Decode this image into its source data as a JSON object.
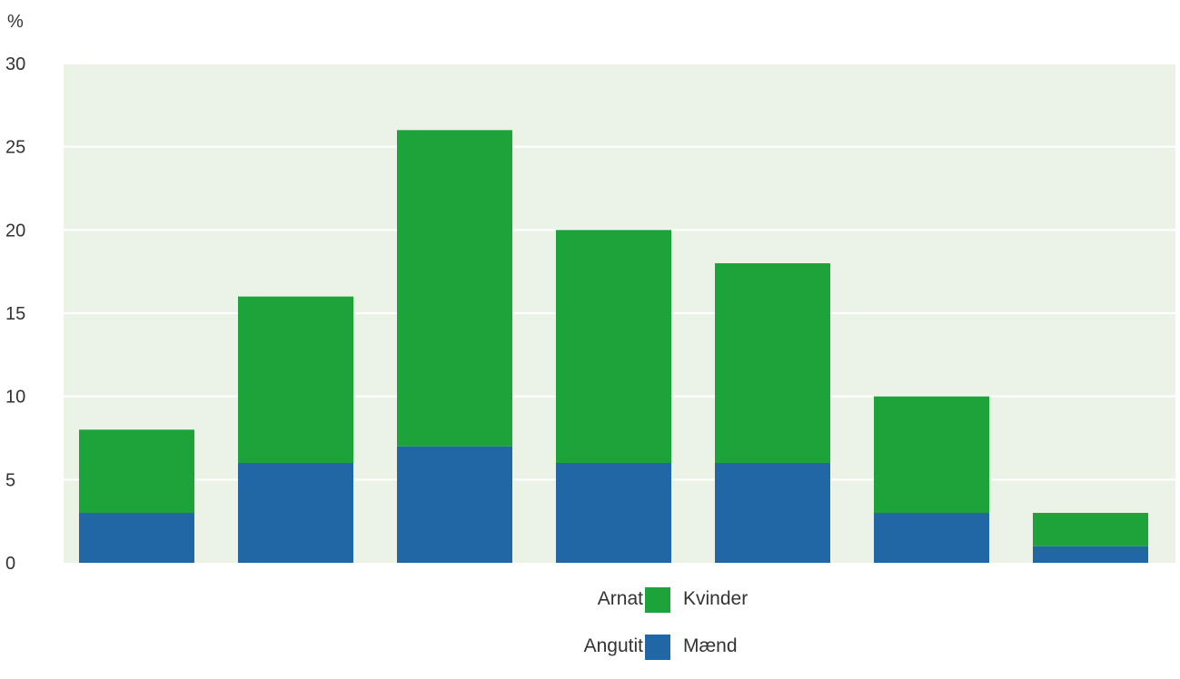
{
  "chart_data": {
    "type": "bar",
    "stacked": true,
    "unit_label": "%",
    "categories": [
      "",
      "",
      "",
      "",
      "",
      "",
      ""
    ],
    "series": [
      {
        "name": "Mænd",
        "name_kl": "Angutit",
        "color": "#2166a5",
        "values": [
          3,
          6,
          7,
          6,
          6,
          3,
          1
        ]
      },
      {
        "name": "Kvinder",
        "name_kl": "Arnat",
        "color": "#1ca33a",
        "values": [
          5,
          10,
          19,
          14,
          12,
          7,
          2
        ]
      }
    ],
    "ylim": [
      0,
      30
    ],
    "yticks": [
      "0",
      "5",
      "10",
      "15",
      "20",
      "25",
      "30"
    ],
    "plot_background": "#eaf3e6",
    "grid": true,
    "legend_position": "bottom-center"
  },
  "legend": {
    "items": [
      {
        "label_kl": "Arnat",
        "label_da": "Kvinder",
        "color": "#1ca33a"
      },
      {
        "label_kl": "Angutit",
        "label_da": "Mænd",
        "color": "#2166a5"
      }
    ]
  }
}
